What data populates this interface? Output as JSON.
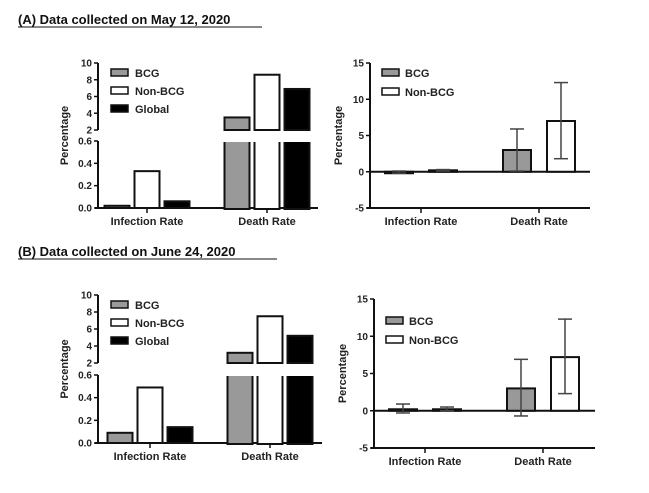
{
  "panels": [
    {
      "title": "(A) Data collected on May 12, 2020",
      "charts": [
        {
          "type": "bar",
          "ylabel": "Percentage",
          "categories": [
            "Infection Rate",
            "Death Rate"
          ],
          "y_broken": true,
          "ylim_lower": [
            0,
            0.6
          ],
          "ylim_upper": [
            2,
            10
          ],
          "yticks_lower": [
            "0.0",
            "0.2",
            "0.4",
            "0.6"
          ],
          "yticks_upper": [
            "2",
            "4",
            "6",
            "8",
            "10"
          ],
          "legend_position": "top-left",
          "series": [
            {
              "name": "BCG",
              "color": "#999999",
              "values": [
                0.02,
                3.5
              ]
            },
            {
              "name": "Non-BCG",
              "color": "#ffffff",
              "values": [
                0.33,
                8.6
              ]
            },
            {
              "name": "Global",
              "color": "#000000",
              "values": [
                0.06,
                6.9
              ]
            }
          ]
        },
        {
          "type": "bar",
          "ylabel": "Percentage",
          "categories": [
            "Infection Rate",
            "Death Rate"
          ],
          "ylim": [
            -5,
            15
          ],
          "yticks": [
            "-5",
            "0",
            "5",
            "10",
            "15"
          ],
          "legend_position": "top-left",
          "series": [
            {
              "name": "BCG",
              "color": "#999999",
              "values": [
                -0.1,
                3.0
              ],
              "err_low": [
                -0.2,
                0.1
              ],
              "err_high": [
                0.1,
                5.9
              ]
            },
            {
              "name": "Non-BCG",
              "color": "#ffffff",
              "values": [
                0.2,
                7.0
              ],
              "err_low": [
                0.1,
                1.8
              ],
              "err_high": [
                0.3,
                12.3
              ]
            }
          ]
        }
      ]
    },
    {
      "title": "(B) Data collected on June 24, 2020",
      "charts": [
        {
          "type": "bar",
          "ylabel": "Percentage",
          "categories": [
            "Infection Rate",
            "Death Rate"
          ],
          "y_broken": true,
          "ylim_lower": [
            0,
            0.6
          ],
          "ylim_upper": [
            2,
            10
          ],
          "yticks_lower": [
            "0.0",
            "0.2",
            "0.4",
            "0.6"
          ],
          "yticks_upper": [
            "2",
            "4",
            "6",
            "8",
            "10"
          ],
          "legend_position": "top-left",
          "series": [
            {
              "name": "BCG",
              "color": "#999999",
              "values": [
                0.09,
                3.2
              ]
            },
            {
              "name": "Non-BCG",
              "color": "#ffffff",
              "values": [
                0.49,
                7.5
              ]
            },
            {
              "name": "Global",
              "color": "#000000",
              "values": [
                0.14,
                5.2
              ]
            }
          ]
        },
        {
          "type": "bar",
          "ylabel": "Percentage",
          "categories": [
            "Infection Rate",
            "Death Rate"
          ],
          "ylim": [
            -5,
            15
          ],
          "yticks": [
            "-5",
            "0",
            "5",
            "10",
            "15"
          ],
          "legend_position": "top-left",
          "series": [
            {
              "name": "BCG",
              "color": "#999999",
              "values": [
                0.2,
                3.0
              ],
              "err_low": [
                -0.3,
                -0.7
              ],
              "err_high": [
                0.9,
                6.9
              ]
            },
            {
              "name": "Non-BCG",
              "color": "#ffffff",
              "values": [
                0.2,
                7.2
              ],
              "err_low": [
                0.0,
                2.3
              ],
              "err_high": [
                0.5,
                12.3
              ]
            }
          ]
        }
      ]
    }
  ]
}
